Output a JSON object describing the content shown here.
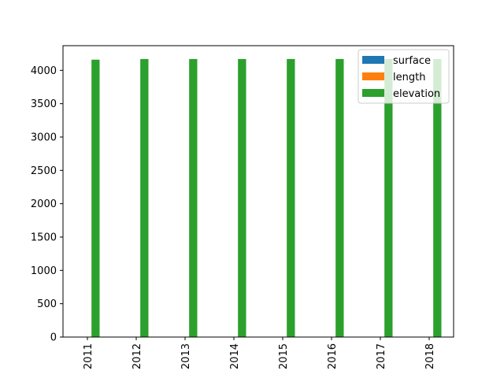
{
  "chart_data": {
    "type": "bar",
    "title": "",
    "xlabel": "",
    "ylabel": "",
    "categories": [
      "2011",
      "2012",
      "2013",
      "2014",
      "2015",
      "2016",
      "2017",
      "2018"
    ],
    "series": [
      {
        "name": "surface",
        "color": "#1f77b4",
        "values": [
          0,
          0,
          0,
          0,
          0,
          0,
          0,
          0
        ]
      },
      {
        "name": "length",
        "color": "#ff7f0e",
        "values": [
          0,
          0,
          0,
          0,
          0,
          0,
          0,
          0
        ]
      },
      {
        "name": "elevation",
        "color": "#2ca02c",
        "values": [
          4160,
          4170,
          4170,
          4170,
          4170,
          4170,
          4170,
          4170
        ]
      }
    ],
    "ylim": [
      0,
      4370
    ],
    "yticks": [
      0,
      500,
      1000,
      1500,
      2000,
      2500,
      3000,
      3500,
      4000
    ],
    "grid": false,
    "legend": "top-right"
  }
}
